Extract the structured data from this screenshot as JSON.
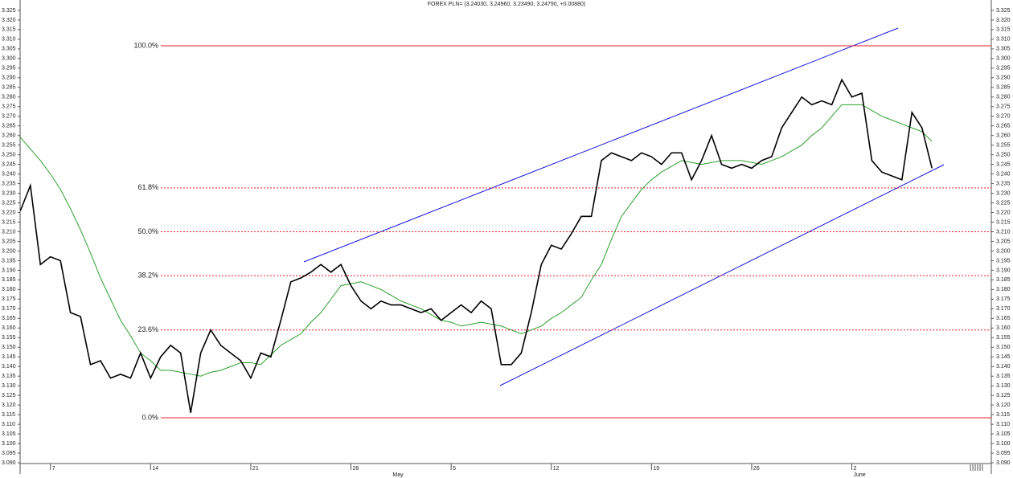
{
  "chart_data": {
    "type": "line",
    "title": "FOREX PLN= (3.24030, 3.24960, 3.23490, 3.24790, +0.00880)",
    "categories": [
      null,
      null,
      null,
      "7",
      null,
      null,
      null,
      null,
      null,
      null,
      null,
      null,
      null,
      "14",
      null,
      null,
      null,
      null,
      null,
      null,
      null,
      null,
      null,
      "21",
      null,
      null,
      null,
      null,
      null,
      null,
      null,
      null,
      null,
      "28",
      null,
      null,
      null,
      null,
      null,
      null,
      null,
      null,
      null,
      "5",
      null,
      null,
      null,
      null,
      null,
      null,
      null,
      null,
      null,
      "12",
      null,
      null,
      null,
      null,
      null,
      null,
      null,
      null,
      null,
      "19",
      null,
      null,
      null,
      null,
      null,
      null,
      null,
      null,
      null,
      "26",
      null,
      null,
      null,
      null,
      null,
      null,
      null,
      null,
      null,
      "2",
      null,
      null,
      null,
      null,
      null,
      null,
      null,
      null,
      null,
      null,
      null,
      null,
      null
    ],
    "months": [
      "May",
      "June"
    ],
    "series": [
      {
        "name": "PLN=",
        "color": "#000000",
        "values": [
          3.221,
          3.234,
          3.193,
          3.197,
          3.195,
          3.168,
          3.166,
          3.141,
          3.143,
          3.134,
          3.136,
          3.134,
          3.147,
          3.134,
          3.145,
          3.151,
          3.147,
          3.116,
          3.147,
          3.159,
          3.151,
          3.147,
          3.143,
          3.134,
          3.147,
          3.145,
          3.164,
          3.184,
          3.186,
          3.189,
          3.193,
          3.189,
          3.193,
          3.182,
          3.174,
          3.17,
          3.174,
          3.172,
          3.172,
          3.17,
          3.168,
          3.17,
          3.164,
          3.168,
          3.172,
          3.168,
          3.174,
          3.17,
          3.141,
          3.141,
          3.147,
          3.168,
          3.193,
          3.203,
          3.201,
          3.209,
          3.218,
          3.218,
          3.247,
          3.251,
          3.249,
          3.247,
          3.251,
          3.249,
          3.245,
          3.251,
          3.251,
          3.237,
          3.247,
          3.26,
          3.245,
          3.243,
          3.245,
          3.243,
          3.247,
          3.249,
          3.264,
          3.272,
          3.28,
          3.276,
          3.278,
          3.276,
          3.289,
          3.28,
          3.282,
          3.247,
          3.241,
          3.239,
          3.237,
          3.272,
          3.264,
          3.243,
          null,
          null,
          null,
          null,
          null
        ]
      },
      {
        "name": "MA",
        "color": "#2ca02c",
        "values": [
          3.259,
          3.253,
          3.247,
          3.24,
          3.232,
          3.222,
          3.211,
          3.199,
          3.186,
          3.175,
          3.164,
          3.156,
          3.147,
          3.143,
          3.138,
          3.138,
          3.137,
          3.136,
          3.135,
          3.137,
          3.138,
          3.14,
          3.142,
          3.142,
          3.141,
          3.146,
          3.151,
          3.154,
          3.157,
          3.163,
          3.168,
          3.175,
          3.182,
          3.183,
          3.184,
          3.182,
          3.18,
          3.177,
          3.174,
          3.172,
          3.17,
          3.167,
          3.164,
          3.163,
          3.161,
          3.162,
          3.163,
          3.162,
          3.161,
          3.159,
          3.157,
          3.159,
          3.161,
          3.165,
          3.168,
          3.172,
          3.176,
          3.185,
          3.193,
          3.206,
          3.218,
          3.225,
          3.232,
          3.237,
          3.241,
          3.244,
          3.247,
          3.246,
          3.245,
          3.246,
          3.247,
          3.247,
          3.247,
          3.246,
          3.245,
          3.247,
          3.249,
          3.252,
          3.255,
          3.26,
          3.264,
          3.27,
          3.276,
          3.276,
          3.276,
          3.273,
          3.27,
          3.268,
          3.266,
          3.264,
          3.262,
          3.257,
          null,
          null,
          null,
          null,
          null
        ]
      }
    ],
    "fib_levels": [
      {
        "value": 3.3066,
        "label": "100.0%"
      },
      {
        "value": 3.2328,
        "label": "61.8%"
      },
      {
        "value": 3.21,
        "label": "50.0%"
      },
      {
        "value": 3.1872,
        "label": "38.2%"
      },
      {
        "value": 3.159,
        "label": "23.6%"
      },
      {
        "value": 3.1134,
        "label": "0.0%"
      }
    ],
    "fib_color": "#e8202a",
    "ylim": [
      3.0896,
      3.3304
    ],
    "yticks": [
      {
        "value": 3.09,
        "label": "3.090"
      },
      3.095,
      {
        "value": 3.1,
        "label": "3.100"
      },
      3.105,
      {
        "value": 3.11,
        "label": "3.110"
      },
      3.115,
      {
        "value": 3.12,
        "label": "3.120"
      },
      3.125,
      {
        "value": 3.13,
        "label": "3.130"
      },
      3.135,
      {
        "value": 3.14,
        "label": "3.140"
      },
      3.145,
      {
        "value": 3.15,
        "label": "3.150"
      },
      3.155,
      {
        "value": 3.16,
        "label": "3.160"
      },
      3.165,
      {
        "value": 3.17,
        "label": "3.170"
      },
      3.175,
      {
        "value": 3.18,
        "label": "3.180"
      },
      3.185,
      {
        "value": 3.19,
        "label": "3.190"
      },
      3.195,
      {
        "value": 3.2,
        "label": "3.200"
      },
      3.205,
      {
        "value": 3.21,
        "label": "3.210"
      },
      3.215,
      {
        "value": 3.22,
        "label": "3.220"
      },
      3.225,
      {
        "value": 3.23,
        "label": "3.230"
      },
      3.235,
      {
        "value": 3.24,
        "label": "3.240"
      },
      3.245,
      {
        "value": 3.25,
        "label": "3.250"
      },
      3.255,
      {
        "value": 3.26,
        "label": "3.260"
      },
      3.265,
      {
        "value": 3.27,
        "label": "3.270"
      },
      3.275,
      {
        "value": 3.28,
        "label": "3.280"
      },
      3.285,
      {
        "value": 3.29,
        "label": "3.290"
      },
      3.295,
      {
        "value": 3.3,
        "label": "3.300"
      },
      3.305,
      {
        "value": 3.31,
        "label": "3.310"
      },
      3.315,
      {
        "value": 3.32,
        "label": "3.320"
      },
      3.325
    ]
  }
}
